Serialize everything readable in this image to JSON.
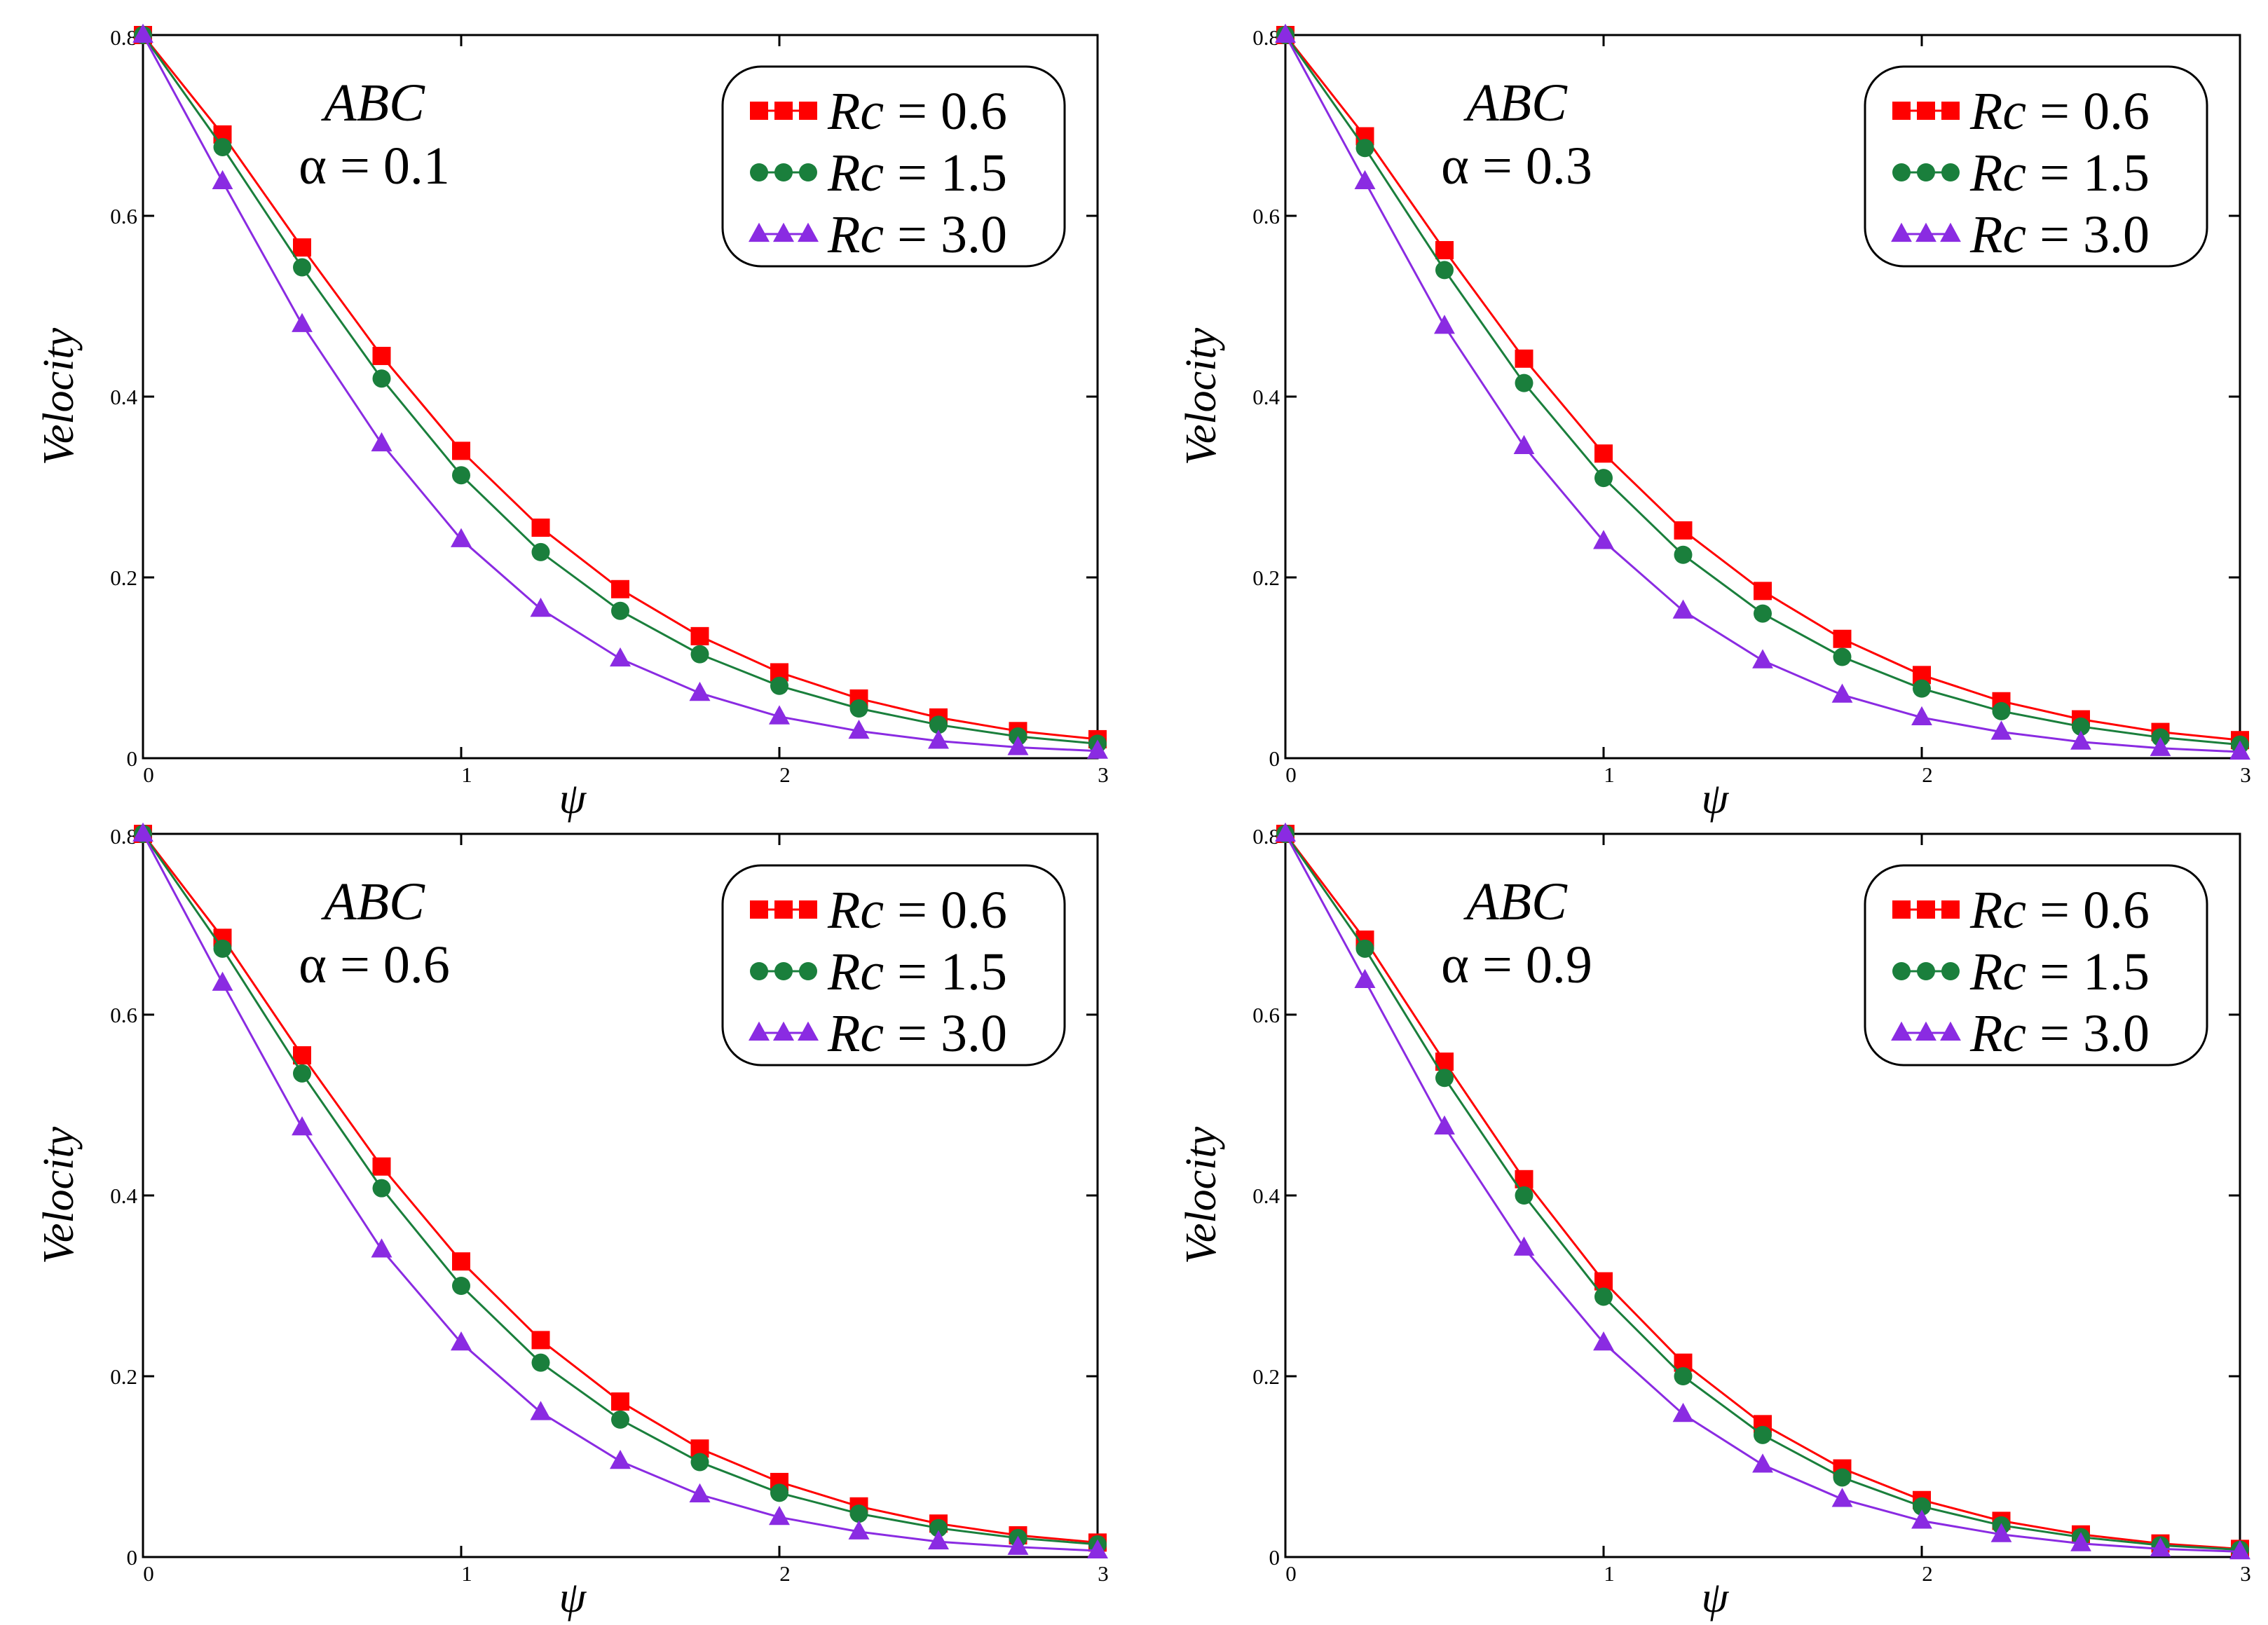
{
  "chart_data": [
    {
      "type": "line",
      "annotation": {
        "model": "ABC",
        "alpha_label": "α = 0.1"
      },
      "xlabel": "ψ",
      "ylabel": "Velocity",
      "xlim": [
        0,
        3
      ],
      "ylim": [
        0,
        0.8
      ],
      "xticks": [
        "0",
        "1",
        "2",
        "3"
      ],
      "yticks": [
        "0",
        "0.2",
        "0.4",
        "0.6",
        "0.8"
      ],
      "legend_position": "top-right",
      "x": [
        0,
        0.25,
        0.5,
        0.75,
        1.0,
        1.25,
        1.5,
        1.75,
        2.0,
        2.25,
        2.5,
        2.75,
        3.0
      ],
      "series": [
        {
          "name": "Rc = 0.6",
          "rc_value": "0.6",
          "color": "#ff0000",
          "marker": "square",
          "values": [
            0.8,
            0.69,
            0.565,
            0.445,
            0.34,
            0.255,
            0.187,
            0.135,
            0.095,
            0.066,
            0.045,
            0.03,
            0.021
          ]
        },
        {
          "name": "Rc = 1.5",
          "rc_value": "1.5",
          "color": "#1a7f3c",
          "marker": "circle",
          "values": [
            0.8,
            0.676,
            0.543,
            0.42,
            0.313,
            0.228,
            0.163,
            0.115,
            0.08,
            0.055,
            0.037,
            0.024,
            0.016
          ]
        },
        {
          "name": "Rc = 3.0",
          "rc_value": "3.0",
          "color": "#8a2be2",
          "marker": "triangle",
          "values": [
            0.8,
            0.638,
            0.48,
            0.348,
            0.242,
            0.165,
            0.11,
            0.072,
            0.046,
            0.03,
            0.019,
            0.012,
            0.008
          ]
        }
      ]
    },
    {
      "type": "line",
      "annotation": {
        "model": "ABC",
        "alpha_label": "α = 0.3"
      },
      "xlabel": "ψ",
      "ylabel": "Velocity",
      "xlim": [
        0,
        3
      ],
      "ylim": [
        0,
        0.8
      ],
      "xticks": [
        "0",
        "1",
        "2",
        "3"
      ],
      "yticks": [
        "0",
        "0.2",
        "0.4",
        "0.6",
        "0.8"
      ],
      "legend_position": "top-right",
      "x": [
        0,
        0.25,
        0.5,
        0.75,
        1.0,
        1.25,
        1.5,
        1.75,
        2.0,
        2.25,
        2.5,
        2.75,
        3.0
      ],
      "series": [
        {
          "name": "Rc = 0.6",
          "rc_value": "0.6",
          "color": "#ff0000",
          "marker": "square",
          "values": [
            0.8,
            0.688,
            0.562,
            0.442,
            0.337,
            0.252,
            0.185,
            0.132,
            0.092,
            0.063,
            0.043,
            0.029,
            0.02
          ]
        },
        {
          "name": "Rc = 1.5",
          "rc_value": "1.5",
          "color": "#1a7f3c",
          "marker": "circle",
          "values": [
            0.8,
            0.675,
            0.54,
            0.415,
            0.31,
            0.225,
            0.16,
            0.112,
            0.077,
            0.052,
            0.035,
            0.023,
            0.015
          ]
        },
        {
          "name": "Rc = 3.0",
          "rc_value": "3.0",
          "color": "#8a2be2",
          "marker": "triangle",
          "values": [
            0.8,
            0.638,
            0.478,
            0.345,
            0.24,
            0.163,
            0.108,
            0.07,
            0.045,
            0.029,
            0.018,
            0.011,
            0.007
          ]
        }
      ]
    },
    {
      "type": "line",
      "annotation": {
        "model": "ABC",
        "alpha_label": "α = 0.6"
      },
      "xlabel": "ψ",
      "ylabel": "Velocity",
      "xlim": [
        0,
        3
      ],
      "ylim": [
        0,
        0.8
      ],
      "xticks": [
        "0",
        "1",
        "2",
        "3"
      ],
      "yticks": [
        "0",
        "0.2",
        "0.4",
        "0.6",
        "0.8"
      ],
      "legend_position": "top-right",
      "x": [
        0,
        0.25,
        0.5,
        0.75,
        1.0,
        1.25,
        1.5,
        1.75,
        2.0,
        2.25,
        2.5,
        2.75,
        3.0
      ],
      "series": [
        {
          "name": "Rc = 0.6",
          "rc_value": "0.6",
          "color": "#ff0000",
          "marker": "square",
          "values": [
            0.8,
            0.685,
            0.555,
            0.432,
            0.327,
            0.24,
            0.172,
            0.12,
            0.083,
            0.056,
            0.037,
            0.024,
            0.016
          ]
        },
        {
          "name": "Rc = 1.5",
          "rc_value": "1.5",
          "color": "#1a7f3c",
          "marker": "circle",
          "values": [
            0.8,
            0.673,
            0.535,
            0.408,
            0.3,
            0.215,
            0.152,
            0.105,
            0.071,
            0.048,
            0.032,
            0.021,
            0.014
          ]
        },
        {
          "name": "Rc = 3.0",
          "rc_value": "3.0",
          "color": "#8a2be2",
          "marker": "triangle",
          "values": [
            0.8,
            0.635,
            0.475,
            0.34,
            0.237,
            0.16,
            0.106,
            0.069,
            0.044,
            0.028,
            0.017,
            0.011,
            0.007
          ]
        }
      ]
    },
    {
      "type": "line",
      "annotation": {
        "model": "ABC",
        "alpha_label": "α = 0.9"
      },
      "xlabel": "ψ",
      "ylabel": "Velocity",
      "xlim": [
        0,
        3
      ],
      "ylim": [
        0,
        0.8
      ],
      "xticks": [
        "0",
        "1",
        "2",
        "3"
      ],
      "yticks": [
        "0",
        "0.2",
        "0.4",
        "0.6",
        "0.8"
      ],
      "legend_position": "top-right",
      "x": [
        0,
        0.25,
        0.5,
        0.75,
        1.0,
        1.25,
        1.5,
        1.75,
        2.0,
        2.25,
        2.5,
        2.75,
        3.0
      ],
      "series": [
        {
          "name": "Rc = 0.6",
          "rc_value": "0.6",
          "color": "#ff0000",
          "marker": "square",
          "values": [
            0.8,
            0.683,
            0.548,
            0.418,
            0.305,
            0.215,
            0.147,
            0.098,
            0.063,
            0.04,
            0.025,
            0.015,
            0.009
          ]
        },
        {
          "name": "Rc = 1.5",
          "rc_value": "1.5",
          "color": "#1a7f3c",
          "marker": "circle",
          "values": [
            0.8,
            0.673,
            0.53,
            0.4,
            0.288,
            0.2,
            0.135,
            0.088,
            0.056,
            0.035,
            0.022,
            0.013,
            0.008
          ]
        },
        {
          "name": "Rc = 3.0",
          "rc_value": "3.0",
          "color": "#8a2be2",
          "marker": "triangle",
          "values": [
            0.8,
            0.638,
            0.476,
            0.342,
            0.237,
            0.158,
            0.102,
            0.064,
            0.04,
            0.025,
            0.015,
            0.009,
            0.006
          ]
        }
      ]
    }
  ]
}
